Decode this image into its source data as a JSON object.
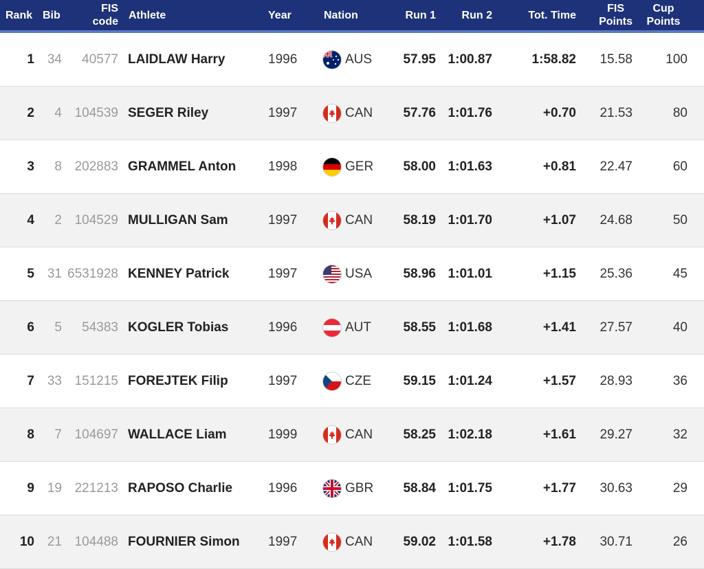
{
  "header": {
    "rank": "Rank",
    "bib": "Bib",
    "fis_code": [
      "FIS",
      "code"
    ],
    "athlete": "Athlete",
    "year": "Year",
    "nation": "Nation",
    "run1": "Run 1",
    "run2": "Run 2",
    "tot_time": "Tot. Time",
    "fis_points": [
      "FIS",
      "Points"
    ],
    "cup_points": [
      "Cup",
      "Points"
    ]
  },
  "rows": [
    {
      "rank": "1",
      "bib": "34",
      "fis_code": "40577",
      "athlete": "LAIDLAW Harry",
      "year": "1996",
      "nation": "AUS",
      "flag": "aus-flag-icon",
      "run1": "57.95",
      "run2": "1:00.87",
      "tot": "1:58.82",
      "fis_points": "15.58",
      "cup_points": "100"
    },
    {
      "rank": "2",
      "bib": "4",
      "fis_code": "104539",
      "athlete": "SEGER Riley",
      "year": "1997",
      "nation": "CAN",
      "flag": "can-flag-icon",
      "run1": "57.76",
      "run2": "1:01.76",
      "tot": "+0.70",
      "fis_points": "21.53",
      "cup_points": "80"
    },
    {
      "rank": "3",
      "bib": "8",
      "fis_code": "202883",
      "athlete": "GRAMMEL Anton",
      "year": "1998",
      "nation": "GER",
      "flag": "ger-flag-icon",
      "run1": "58.00",
      "run2": "1:01.63",
      "tot": "+0.81",
      "fis_points": "22.47",
      "cup_points": "60"
    },
    {
      "rank": "4",
      "bib": "2",
      "fis_code": "104529",
      "athlete": "MULLIGAN Sam",
      "year": "1997",
      "nation": "CAN",
      "flag": "can-flag-icon",
      "run1": "58.19",
      "run2": "1:01.70",
      "tot": "+1.07",
      "fis_points": "24.68",
      "cup_points": "50"
    },
    {
      "rank": "5",
      "bib": "31",
      "fis_code": "6531928",
      "athlete": "KENNEY Patrick",
      "year": "1997",
      "nation": "USA",
      "flag": "usa-flag-icon",
      "run1": "58.96",
      "run2": "1:01.01",
      "tot": "+1.15",
      "fis_points": "25.36",
      "cup_points": "45"
    },
    {
      "rank": "6",
      "bib": "5",
      "fis_code": "54383",
      "athlete": "KOGLER Tobias",
      "year": "1996",
      "nation": "AUT",
      "flag": "aut-flag-icon",
      "run1": "58.55",
      "run2": "1:01.68",
      "tot": "+1.41",
      "fis_points": "27.57",
      "cup_points": "40"
    },
    {
      "rank": "7",
      "bib": "33",
      "fis_code": "151215",
      "athlete": "FOREJTEK Filip",
      "year": "1997",
      "nation": "CZE",
      "flag": "cze-flag-icon",
      "run1": "59.15",
      "run2": "1:01.24",
      "tot": "+1.57",
      "fis_points": "28.93",
      "cup_points": "36"
    },
    {
      "rank": "8",
      "bib": "7",
      "fis_code": "104697",
      "athlete": "WALLACE Liam",
      "year": "1999",
      "nation": "CAN",
      "flag": "can-flag-icon",
      "run1": "58.25",
      "run2": "1:02.18",
      "tot": "+1.61",
      "fis_points": "29.27",
      "cup_points": "32"
    },
    {
      "rank": "9",
      "bib": "19",
      "fis_code": "221213",
      "athlete": "RAPOSO Charlie",
      "year": "1996",
      "nation": "GBR",
      "flag": "gbr-flag-icon",
      "run1": "58.84",
      "run2": "1:01.75",
      "tot": "+1.77",
      "fis_points": "30.63",
      "cup_points": "29"
    },
    {
      "rank": "10",
      "bib": "21",
      "fis_code": "104488",
      "athlete": "FOURNIER Simon",
      "year": "1997",
      "nation": "CAN",
      "flag": "can-flag-icon",
      "run1": "59.02",
      "run2": "1:01.58",
      "tot": "+1.78",
      "fis_points": "30.71",
      "cup_points": "26"
    }
  ],
  "colors": {
    "header_bg": "#1d3278",
    "header_underline": "#5a78c8",
    "row_alt": "#f2f2f2"
  }
}
